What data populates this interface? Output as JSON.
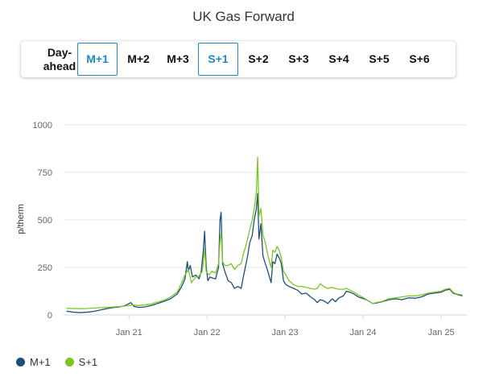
{
  "header": {
    "title": "UK Gas Forward"
  },
  "tabs": [
    {
      "label": "Day-ahead",
      "active": false
    },
    {
      "label": "M+1",
      "active": true
    },
    {
      "label": "M+2",
      "active": false
    },
    {
      "label": "M+3",
      "active": false
    },
    {
      "label": "S+1",
      "active": true
    },
    {
      "label": "S+2",
      "active": false
    },
    {
      "label": "S+3",
      "active": false
    },
    {
      "label": "S+4",
      "active": false
    },
    {
      "label": "S+5",
      "active": false
    },
    {
      "label": "S+6",
      "active": false
    }
  ],
  "colors": {
    "accent": "#1f8ac4",
    "m1": "#1e4f7a",
    "s1": "#7cc624",
    "grid": "#e6e6e6"
  },
  "chart_data": {
    "type": "line",
    "title": "UK Gas Forward",
    "ylabel": "p/therm",
    "xlabel": "",
    "ylim": [
      0,
      1000
    ],
    "yticks": [
      0,
      250,
      500,
      750,
      1000
    ],
    "xlim": [
      "2020-03-01",
      "2025-05-01"
    ],
    "xticks": [
      {
        "date": "2021-01-01",
        "label": "Jan 21"
      },
      {
        "date": "2022-01-01",
        "label": "Jan 22"
      },
      {
        "date": "2023-01-01",
        "label": "Jan 23"
      },
      {
        "date": "2024-01-01",
        "label": "Jan 24"
      },
      {
        "date": "2025-01-01",
        "label": "Jan 25"
      }
    ],
    "grid": true,
    "legend_position": "bottom-left",
    "series": [
      {
        "name": "M+1",
        "color": "#1e4f7a",
        "points": [
          [
            "2020-03-15",
            20
          ],
          [
            "2020-04-15",
            15
          ],
          [
            "2020-05-15",
            12
          ],
          [
            "2020-06-15",
            14
          ],
          [
            "2020-07-15",
            18
          ],
          [
            "2020-08-15",
            25
          ],
          [
            "2020-09-15",
            32
          ],
          [
            "2020-10-15",
            38
          ],
          [
            "2020-11-15",
            42
          ],
          [
            "2020-12-15",
            50
          ],
          [
            "2021-01-10",
            65
          ],
          [
            "2021-01-25",
            45
          ],
          [
            "2021-02-15",
            40
          ],
          [
            "2021-03-15",
            42
          ],
          [
            "2021-04-15",
            50
          ],
          [
            "2021-05-15",
            60
          ],
          [
            "2021-06-15",
            72
          ],
          [
            "2021-07-15",
            85
          ],
          [
            "2021-08-15",
            110
          ],
          [
            "2021-09-05",
            150
          ],
          [
            "2021-09-20",
            190
          ],
          [
            "2021-10-01",
            280
          ],
          [
            "2021-10-06",
            230
          ],
          [
            "2021-10-15",
            260
          ],
          [
            "2021-10-25",
            200
          ],
          [
            "2021-11-10",
            210
          ],
          [
            "2021-11-25",
            190
          ],
          [
            "2021-12-05",
            230
          ],
          [
            "2021-12-15",
            340
          ],
          [
            "2021-12-21",
            440
          ],
          [
            "2021-12-28",
            260
          ],
          [
            "2022-01-05",
            180
          ],
          [
            "2022-01-15",
            200
          ],
          [
            "2022-01-25",
            195
          ],
          [
            "2022-02-10",
            190
          ],
          [
            "2022-02-24",
            250
          ],
          [
            "2022-03-03",
            500
          ],
          [
            "2022-03-08",
            540
          ],
          [
            "2022-03-15",
            270
          ],
          [
            "2022-03-25",
            230
          ],
          [
            "2022-04-10",
            180
          ],
          [
            "2022-04-25",
            170
          ],
          [
            "2022-05-10",
            140
          ],
          [
            "2022-05-25",
            150
          ],
          [
            "2022-06-10",
            140
          ],
          [
            "2022-06-20",
            200
          ],
          [
            "2022-07-01",
            260
          ],
          [
            "2022-07-10",
            310
          ],
          [
            "2022-07-20",
            380
          ],
          [
            "2022-08-01",
            420
          ],
          [
            "2022-08-10",
            500
          ],
          [
            "2022-08-20",
            560
          ],
          [
            "2022-08-26",
            640
          ],
          [
            "2022-09-01",
            400
          ],
          [
            "2022-09-10",
            480
          ],
          [
            "2022-09-20",
            310
          ],
          [
            "2022-10-01",
            270
          ],
          [
            "2022-10-10",
            240
          ],
          [
            "2022-10-20",
            200
          ],
          [
            "2022-10-28",
            170
          ],
          [
            "2022-11-05",
            280
          ],
          [
            "2022-11-15",
            270
          ],
          [
            "2022-11-25",
            320
          ],
          [
            "2022-12-05",
            300
          ],
          [
            "2022-12-15",
            270
          ],
          [
            "2022-12-25",
            180
          ],
          [
            "2023-01-05",
            160
          ],
          [
            "2023-01-20",
            150
          ],
          [
            "2023-02-10",
            140
          ],
          [
            "2023-03-01",
            130
          ],
          [
            "2023-03-20",
            110
          ],
          [
            "2023-04-10",
            115
          ],
          [
            "2023-05-01",
            95
          ],
          [
            "2023-05-20",
            80
          ],
          [
            "2023-06-01",
            65
          ],
          [
            "2023-06-15",
            80
          ],
          [
            "2023-07-01",
            75
          ],
          [
            "2023-07-20",
            60
          ],
          [
            "2023-08-10",
            85
          ],
          [
            "2023-08-25",
            70
          ],
          [
            "2023-09-10",
            90
          ],
          [
            "2023-10-01",
            100
          ],
          [
            "2023-10-15",
            125
          ],
          [
            "2023-11-01",
            120
          ],
          [
            "2023-11-20",
            110
          ],
          [
            "2023-12-10",
            95
          ],
          [
            "2024-01-05",
            85
          ],
          [
            "2024-01-25",
            75
          ],
          [
            "2024-02-15",
            60
          ],
          [
            "2024-03-01",
            62
          ],
          [
            "2024-04-01",
            70
          ],
          [
            "2024-05-01",
            80
          ],
          [
            "2024-06-01",
            85
          ],
          [
            "2024-07-01",
            80
          ],
          [
            "2024-08-01",
            90
          ],
          [
            "2024-09-01",
            88
          ],
          [
            "2024-10-01",
            95
          ],
          [
            "2024-11-01",
            110
          ],
          [
            "2024-12-01",
            115
          ],
          [
            "2025-01-01",
            120
          ],
          [
            "2025-01-20",
            130
          ],
          [
            "2025-02-10",
            135
          ],
          [
            "2025-02-25",
            115
          ],
          [
            "2025-03-10",
            110
          ],
          [
            "2025-03-25",
            105
          ],
          [
            "2025-04-10",
            100
          ]
        ]
      },
      {
        "name": "S+1",
        "color": "#7cc624",
        "points": [
          [
            "2020-03-15",
            35
          ],
          [
            "2020-04-15",
            34
          ],
          [
            "2020-05-15",
            33
          ],
          [
            "2020-06-15",
            34
          ],
          [
            "2020-07-15",
            36
          ],
          [
            "2020-08-15",
            38
          ],
          [
            "2020-09-15",
            40
          ],
          [
            "2020-10-15",
            42
          ],
          [
            "2020-11-15",
            44
          ],
          [
            "2020-12-15",
            47
          ],
          [
            "2021-01-15",
            52
          ],
          [
            "2021-02-15",
            50
          ],
          [
            "2021-03-15",
            52
          ],
          [
            "2021-04-15",
            58
          ],
          [
            "2021-05-15",
            68
          ],
          [
            "2021-06-15",
            78
          ],
          [
            "2021-07-15",
            95
          ],
          [
            "2021-08-15",
            120
          ],
          [
            "2021-09-05",
            170
          ],
          [
            "2021-09-20",
            210
          ],
          [
            "2021-10-06",
            240
          ],
          [
            "2021-10-20",
            170
          ],
          [
            "2021-11-10",
            200
          ],
          [
            "2021-11-25",
            205
          ],
          [
            "2021-12-10",
            230
          ],
          [
            "2021-12-21",
            350
          ],
          [
            "2021-12-28",
            230
          ],
          [
            "2022-01-10",
            210
          ],
          [
            "2022-01-25",
            230
          ],
          [
            "2022-02-10",
            220
          ],
          [
            "2022-02-24",
            270
          ],
          [
            "2022-03-03",
            390
          ],
          [
            "2022-03-08",
            430
          ],
          [
            "2022-03-15",
            280
          ],
          [
            "2022-03-25",
            260
          ],
          [
            "2022-04-10",
            260
          ],
          [
            "2022-04-25",
            270
          ],
          [
            "2022-05-10",
            240
          ],
          [
            "2022-05-25",
            260
          ],
          [
            "2022-06-10",
            270
          ],
          [
            "2022-06-20",
            320
          ],
          [
            "2022-07-01",
            360
          ],
          [
            "2022-07-10",
            400
          ],
          [
            "2022-07-20",
            450
          ],
          [
            "2022-08-01",
            500
          ],
          [
            "2022-08-10",
            560
          ],
          [
            "2022-08-20",
            650
          ],
          [
            "2022-08-26",
            830
          ],
          [
            "2022-09-01",
            520
          ],
          [
            "2022-09-10",
            560
          ],
          [
            "2022-09-20",
            420
          ],
          [
            "2022-10-01",
            380
          ],
          [
            "2022-10-10",
            330
          ],
          [
            "2022-10-20",
            280
          ],
          [
            "2022-10-28",
            250
          ],
          [
            "2022-11-05",
            340
          ],
          [
            "2022-11-15",
            330
          ],
          [
            "2022-11-25",
            360
          ],
          [
            "2022-12-05",
            340
          ],
          [
            "2022-12-15",
            300
          ],
          [
            "2022-12-25",
            230
          ],
          [
            "2023-01-05",
            210
          ],
          [
            "2023-01-20",
            180
          ],
          [
            "2023-02-10",
            160
          ],
          [
            "2023-03-01",
            150
          ],
          [
            "2023-03-20",
            150
          ],
          [
            "2023-04-10",
            145
          ],
          [
            "2023-05-01",
            140
          ],
          [
            "2023-05-20",
            135
          ],
          [
            "2023-06-01",
            140
          ],
          [
            "2023-06-15",
            165
          ],
          [
            "2023-07-01",
            150
          ],
          [
            "2023-07-20",
            140
          ],
          [
            "2023-08-10",
            145
          ],
          [
            "2023-08-25",
            140
          ],
          [
            "2023-09-10",
            135
          ],
          [
            "2023-10-01",
            135
          ],
          [
            "2023-10-15",
            140
          ],
          [
            "2023-11-01",
            130
          ],
          [
            "2023-11-20",
            120
          ],
          [
            "2023-12-10",
            105
          ],
          [
            "2024-01-05",
            90
          ],
          [
            "2024-01-25",
            75
          ],
          [
            "2024-02-15",
            60
          ],
          [
            "2024-03-01",
            65
          ],
          [
            "2024-04-01",
            72
          ],
          [
            "2024-05-01",
            85
          ],
          [
            "2024-06-01",
            90
          ],
          [
            "2024-07-01",
            95
          ],
          [
            "2024-08-01",
            100
          ],
          [
            "2024-09-01",
            100
          ],
          [
            "2024-10-01",
            105
          ],
          [
            "2024-11-01",
            115
          ],
          [
            "2024-12-01",
            120
          ],
          [
            "2025-01-01",
            125
          ],
          [
            "2025-01-20",
            135
          ],
          [
            "2025-02-10",
            140
          ],
          [
            "2025-02-25",
            120
          ],
          [
            "2025-03-10",
            112
          ],
          [
            "2025-03-25",
            108
          ],
          [
            "2025-04-10",
            105
          ]
        ]
      }
    ]
  }
}
